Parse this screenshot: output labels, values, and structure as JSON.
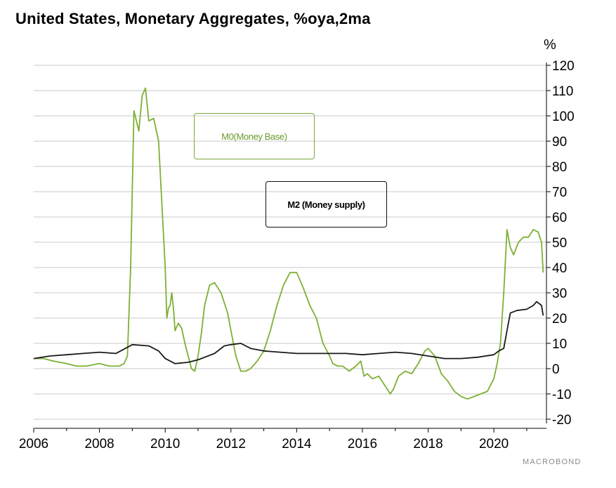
{
  "colors": {
    "m0": "#7db034",
    "m2": "#1a1a1a",
    "grid": "#c8c8c8"
  },
  "chart_data": {
    "type": "line",
    "title": "United States, Monetary Aggregates, %oya,2ma",
    "ylabel": "%",
    "xlabel": "",
    "ylim": [
      -20,
      120
    ],
    "xlim": [
      2006,
      2021.6
    ],
    "yticks": [
      -20,
      -10,
      0,
      10,
      20,
      30,
      40,
      50,
      60,
      70,
      80,
      90,
      100,
      110,
      120
    ],
    "xticks": [
      2006,
      2008,
      2010,
      2012,
      2014,
      2016,
      2018,
      2020
    ],
    "y_axis_side": "right",
    "grid": "horizontal",
    "series": [
      {
        "name": "M0 (Money Base)",
        "color": "#7db034",
        "x": [
          2006.0,
          2006.3,
          2006.6,
          2007.0,
          2007.3,
          2007.6,
          2008.0,
          2008.3,
          2008.6,
          2008.75,
          2008.85,
          2008.95,
          2009.05,
          2009.2,
          2009.3,
          2009.4,
          2009.5,
          2009.65,
          2009.8,
          2009.9,
          2010.0,
          2010.05,
          2010.1,
          2010.15,
          2010.2,
          2010.25,
          2010.3,
          2010.4,
          2010.5,
          2010.6,
          2010.7,
          2010.8,
          2010.9,
          2011.0,
          2011.1,
          2011.2,
          2011.35,
          2011.5,
          2011.7,
          2011.9,
          2012.0,
          2012.15,
          2012.3,
          2012.45,
          2012.6,
          2012.8,
          2013.0,
          2013.2,
          2013.4,
          2013.6,
          2013.8,
          2014.0,
          2014.2,
          2014.4,
          2014.6,
          2014.8,
          2015.0,
          2015.1,
          2015.25,
          2015.4,
          2015.6,
          2015.8,
          2015.95,
          2016.05,
          2016.15,
          2016.3,
          2016.5,
          2016.7,
          2016.85,
          2016.95,
          2017.1,
          2017.3,
          2017.5,
          2017.7,
          2017.9,
          2018.0,
          2018.2,
          2018.4,
          2018.6,
          2018.8,
          2019.0,
          2019.2,
          2019.4,
          2019.6,
          2019.8,
          2020.0,
          2020.1,
          2020.2,
          2020.3,
          2020.4,
          2020.5,
          2020.6,
          2020.75,
          2020.9,
          2021.05,
          2021.2,
          2021.35,
          2021.45,
          2021.5
        ],
        "y": [
          4,
          4,
          3,
          2,
          1,
          1,
          2,
          1,
          1,
          2,
          5,
          40,
          102,
          94,
          108,
          111,
          98,
          99,
          90,
          65,
          40,
          20,
          24,
          25,
          30,
          24,
          15,
          18,
          16,
          10,
          5,
          0,
          -1,
          5,
          14,
          25,
          33,
          34,
          30,
          22,
          15,
          5,
          -1,
          -1,
          0,
          3,
          7,
          15,
          25,
          33,
          38,
          38,
          32,
          25,
          20,
          10,
          5,
          2,
          1,
          1,
          -1,
          1,
          3,
          -3,
          -2,
          -4,
          -3,
          -7,
          -10,
          -8,
          -3,
          -1,
          -2,
          2,
          7,
          8,
          5,
          -2,
          -5,
          -9,
          -11,
          -12,
          -11,
          -10,
          -9,
          -4,
          2,
          10,
          30,
          55,
          48,
          45,
          50,
          52,
          52,
          55,
          54,
          50,
          38
        ]
      },
      {
        "name": "M2 (Money supply)",
        "color": "#1a1a1a",
        "x": [
          2006.0,
          2006.5,
          2007.0,
          2007.5,
          2008.0,
          2008.5,
          2009.0,
          2009.5,
          2009.8,
          2010.0,
          2010.3,
          2010.7,
          2011.0,
          2011.5,
          2011.8,
          2012.0,
          2012.3,
          2012.6,
          2013.0,
          2013.5,
          2014.0,
          2014.5,
          2015.0,
          2015.5,
          2016.0,
          2016.5,
          2017.0,
          2017.5,
          2018.0,
          2018.5,
          2019.0,
          2019.5,
          2020.0,
          2020.15,
          2020.3,
          2020.4,
          2020.5,
          2020.7,
          2021.0,
          2021.2,
          2021.3,
          2021.45,
          2021.5
        ],
        "y": [
          4,
          5,
          5.5,
          6,
          6.5,
          6,
          9.5,
          9,
          7,
          4,
          2,
          2.5,
          3.5,
          6,
          9,
          9.5,
          10,
          8,
          7,
          6.5,
          6,
          6,
          6,
          6,
          5.5,
          6,
          6.5,
          6,
          5,
          4,
          4,
          4.5,
          5.5,
          7,
          8,
          15,
          22,
          23,
          23.5,
          25,
          26.5,
          25,
          21
        ]
      }
    ],
    "legend": [
      {
        "label": "M0(Money Base)",
        "color": "#7db034",
        "placement": "upper-center"
      },
      {
        "label": "M2 (Money supply)",
        "color": "#1a1a1a",
        "placement": "upper-center"
      }
    ]
  },
  "watermark": "MACROBOND"
}
